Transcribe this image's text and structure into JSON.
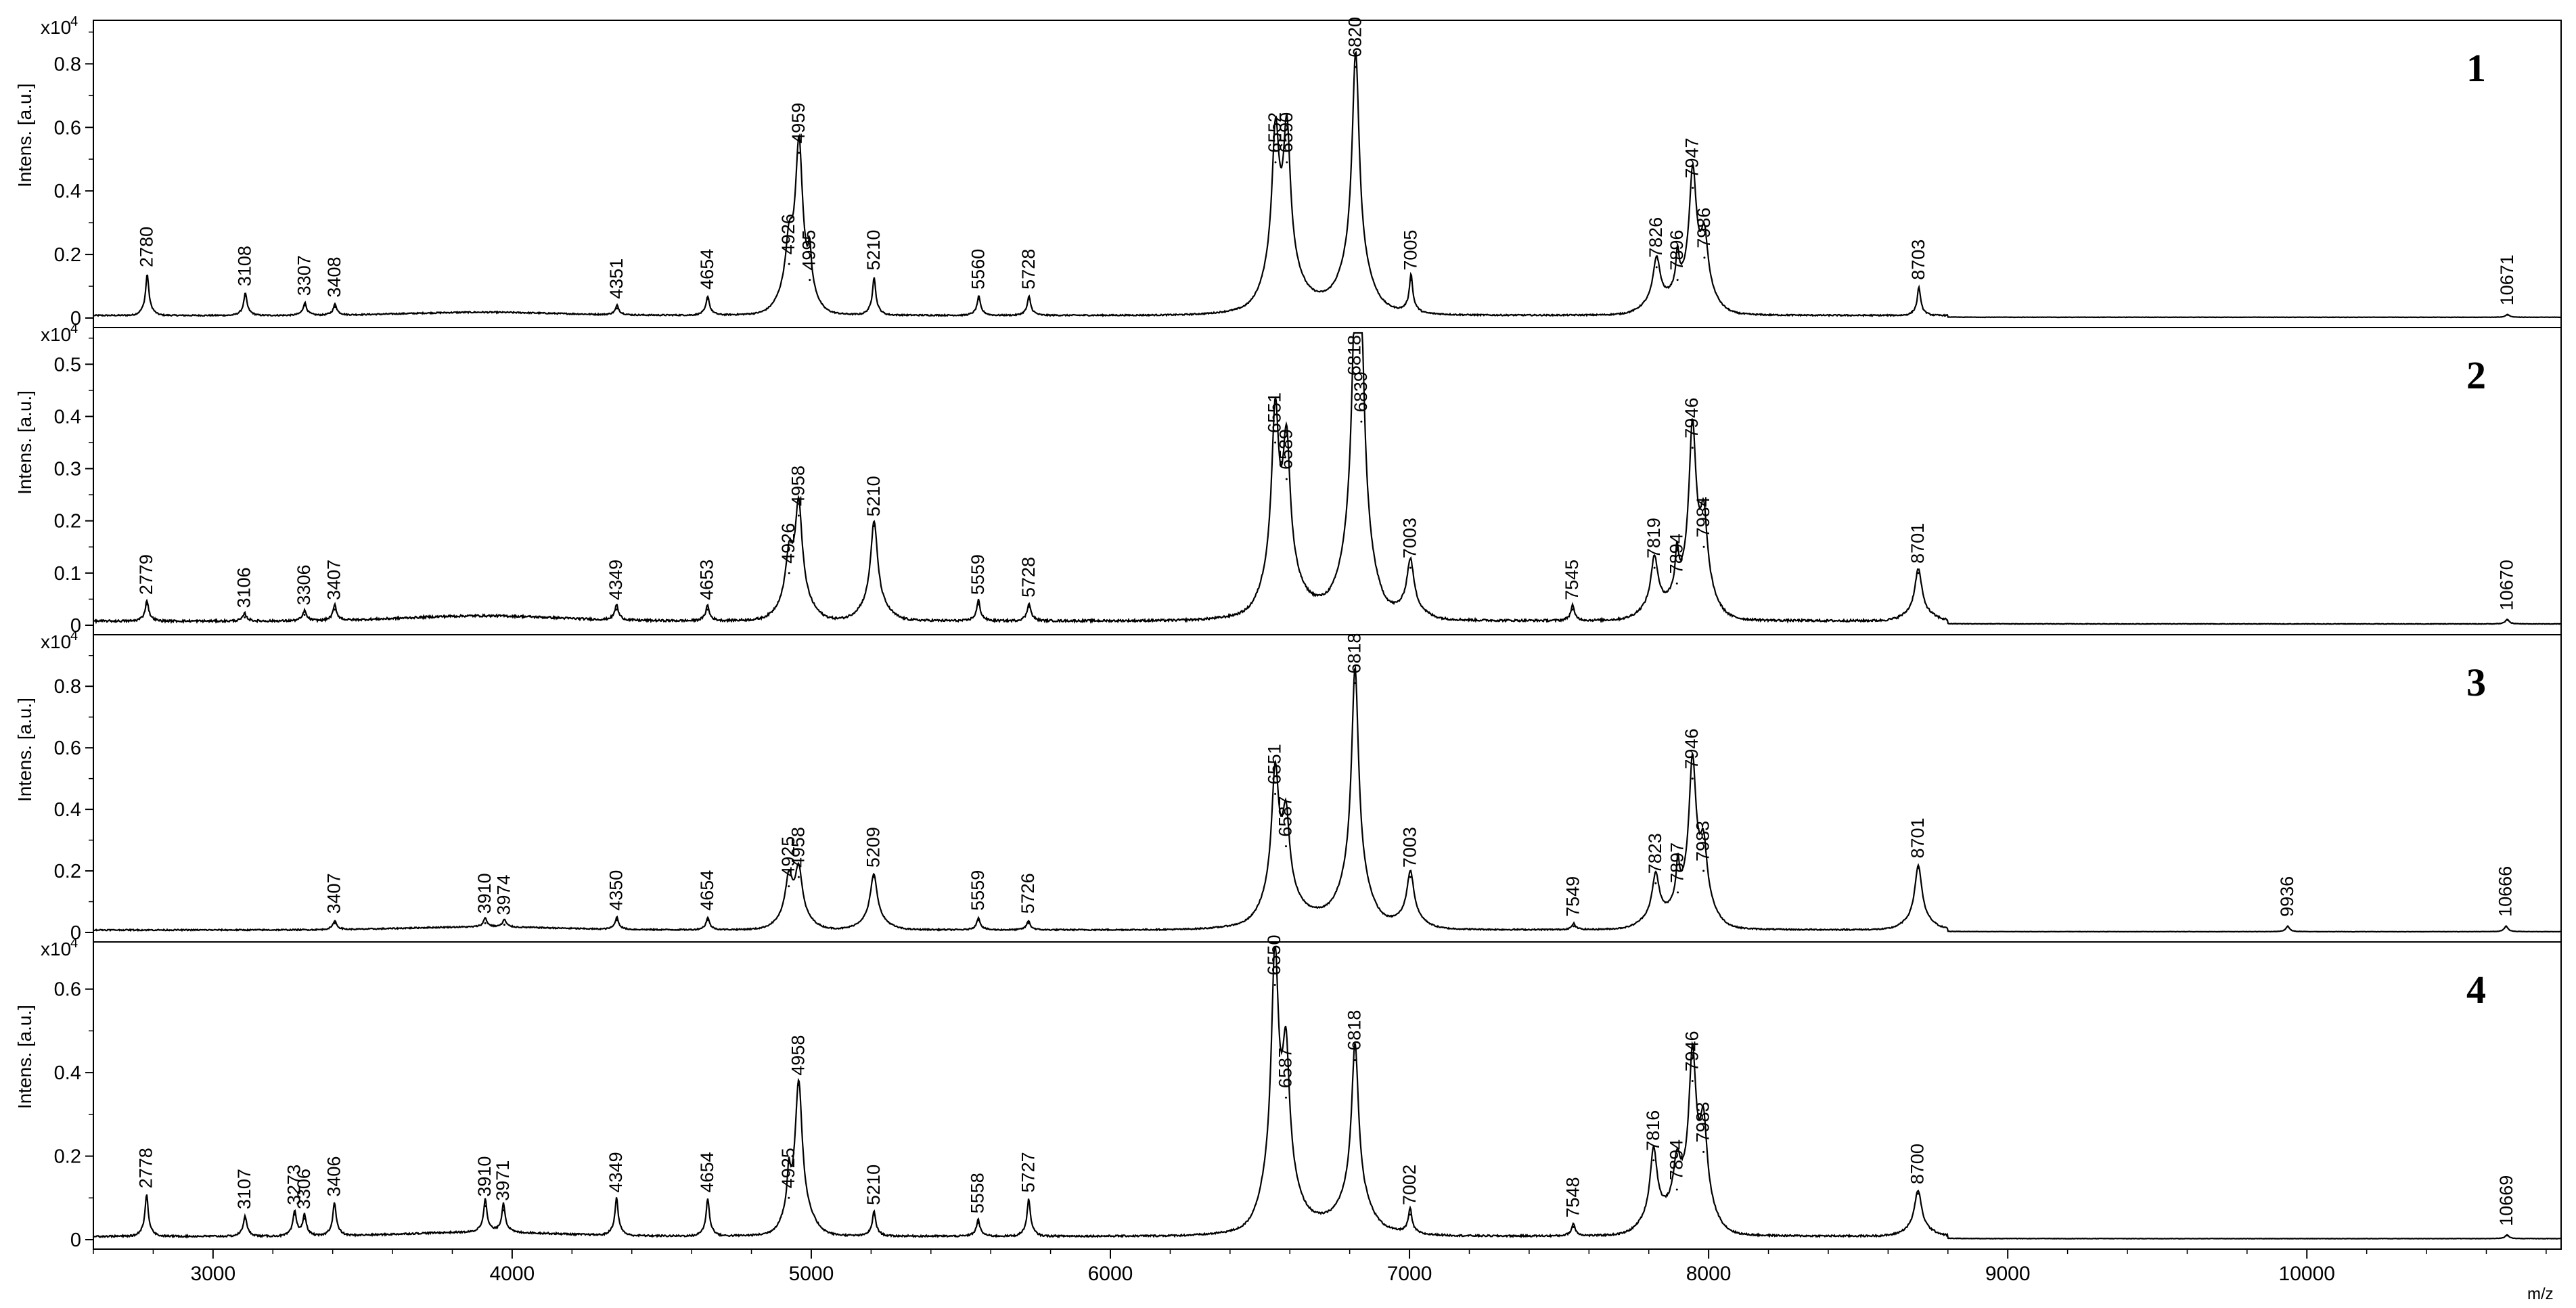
{
  "chart_data": {
    "type": "line",
    "shared_x_axis": {
      "label": "m/z",
      "range": [
        2600,
        10850
      ],
      "ticks": [
        3000,
        4000,
        5000,
        6000,
        7000,
        8000,
        9000,
        10000
      ]
    },
    "y_axis_label": "Intens. [a.u.]",
    "y_axis_multiplier": "x10",
    "y_axis_multiplier_exponent": "4",
    "panels": [
      {
        "panel_number": "1",
        "y_range": [
          0,
          0.92
        ],
        "y_ticks": [
          0.0,
          0.2,
          0.4,
          0.6,
          0.8
        ],
        "peaks": [
          {
            "label": "2780",
            "x": 2780,
            "y": 0.13
          },
          {
            "label": "3108",
            "x": 3108,
            "y": 0.07
          },
          {
            "label": "3307",
            "x": 3307,
            "y": 0.04
          },
          {
            "label": "3408",
            "x": 3408,
            "y": 0.035
          },
          {
            "label": "4351",
            "x": 4351,
            "y": 0.03
          },
          {
            "label": "4654",
            "x": 4654,
            "y": 0.06
          },
          {
            "label": "4926",
            "x": 4926,
            "y": 0.17
          },
          {
            "label": "4959",
            "x": 4959,
            "y": 0.52
          },
          {
            "label": "4995",
            "x": 4995,
            "y": 0.12
          },
          {
            "label": "5210",
            "x": 5210,
            "y": 0.12
          },
          {
            "label": "5560",
            "x": 5560,
            "y": 0.06
          },
          {
            "label": "5728",
            "x": 5728,
            "y": 0.06
          },
          {
            "label": "6552",
            "x": 6552,
            "y": 0.49
          },
          {
            "label": "6590",
            "x": 6590,
            "y": 0.49
          },
          {
            "label": "6820",
            "x": 6820,
            "y": 0.79
          },
          {
            "label": "7005",
            "x": 7005,
            "y": 0.12
          },
          {
            "label": "7826",
            "x": 7826,
            "y": 0.16
          },
          {
            "label": "7896",
            "x": 7896,
            "y": 0.12
          },
          {
            "label": "7947",
            "x": 7947,
            "y": 0.41
          },
          {
            "label": "7986",
            "x": 7986,
            "y": 0.19
          },
          {
            "label": "8703",
            "x": 8703,
            "y": 0.09
          },
          {
            "label": "10671",
            "x": 10671,
            "y": 0.01
          }
        ]
      },
      {
        "panel_number": "2",
        "y_range": [
          0,
          0.56
        ],
        "y_ticks": [
          0.0,
          0.1,
          0.2,
          0.3,
          0.4,
          0.5
        ],
        "peaks": [
          {
            "label": "2779",
            "x": 2779,
            "y": 0.04
          },
          {
            "label": "3106",
            "x": 3106,
            "y": 0.015
          },
          {
            "label": "3306",
            "x": 3306,
            "y": 0.02
          },
          {
            "label": "3407",
            "x": 3407,
            "y": 0.03
          },
          {
            "label": "4349",
            "x": 4349,
            "y": 0.03
          },
          {
            "label": "4653",
            "x": 4653,
            "y": 0.03
          },
          {
            "label": "4926",
            "x": 4926,
            "y": 0.1
          },
          {
            "label": "4958",
            "x": 4958,
            "y": 0.21
          },
          {
            "label": "5210",
            "x": 5210,
            "y": 0.19
          },
          {
            "label": "5559",
            "x": 5559,
            "y": 0.04
          },
          {
            "label": "5728",
            "x": 5728,
            "y": 0.035
          },
          {
            "label": "6551",
            "x": 6551,
            "y": 0.35
          },
          {
            "label": "6589",
            "x": 6589,
            "y": 0.28
          },
          {
            "label": "6818",
            "x": 6818,
            "y": 0.46
          },
          {
            "label": "6839",
            "x": 6839,
            "y": 0.39
          },
          {
            "label": "7003",
            "x": 7003,
            "y": 0.11
          },
          {
            "label": "7545",
            "x": 7545,
            "y": 0.03
          },
          {
            "label": "7819",
            "x": 7819,
            "y": 0.11
          },
          {
            "label": "7894",
            "x": 7894,
            "y": 0.08
          },
          {
            "label": "7946",
            "x": 7946,
            "y": 0.34
          },
          {
            "label": "7984",
            "x": 7984,
            "y": 0.15
          },
          {
            "label": "8701",
            "x": 8701,
            "y": 0.1
          },
          {
            "label": "10670",
            "x": 10670,
            "y": 0.01
          }
        ]
      },
      {
        "panel_number": "3",
        "y_range": [
          0,
          0.95
        ],
        "y_ticks": [
          0.0,
          0.2,
          0.4,
          0.6,
          0.8
        ],
        "peaks": [
          {
            "label": "3407",
            "x": 3407,
            "y": 0.03
          },
          {
            "label": "3910",
            "x": 3910,
            "y": 0.03
          },
          {
            "label": "3974",
            "x": 3974,
            "y": 0.025
          },
          {
            "label": "4350",
            "x": 4350,
            "y": 0.04
          },
          {
            "label": "4654",
            "x": 4654,
            "y": 0.04
          },
          {
            "label": "4925",
            "x": 4925,
            "y": 0.15
          },
          {
            "label": "4958",
            "x": 4958,
            "y": 0.18
          },
          {
            "label": "5209",
            "x": 5209,
            "y": 0.18
          },
          {
            "label": "5559",
            "x": 5559,
            "y": 0.04
          },
          {
            "label": "5726",
            "x": 5726,
            "y": 0.03
          },
          {
            "label": "6551",
            "x": 6551,
            "y": 0.45
          },
          {
            "label": "6587",
            "x": 6587,
            "y": 0.28
          },
          {
            "label": "6818",
            "x": 6818,
            "y": 0.81
          },
          {
            "label": "7003",
            "x": 7003,
            "y": 0.18
          },
          {
            "label": "7549",
            "x": 7549,
            "y": 0.02
          },
          {
            "label": "7823",
            "x": 7823,
            "y": 0.16
          },
          {
            "label": "7897",
            "x": 7897,
            "y": 0.13
          },
          {
            "label": "7946",
            "x": 7946,
            "y": 0.5
          },
          {
            "label": "7983",
            "x": 7983,
            "y": 0.2
          },
          {
            "label": "8701",
            "x": 8701,
            "y": 0.21
          },
          {
            "label": "9936",
            "x": 9936,
            "y": 0.02
          },
          {
            "label": "10666",
            "x": 10666,
            "y": 0.02
          }
        ]
      },
      {
        "panel_number": "4",
        "y_range": [
          0,
          0.7
        ],
        "y_ticks": [
          0.0,
          0.2,
          0.4,
          0.6
        ],
        "peaks": [
          {
            "label": "2778",
            "x": 2778,
            "y": 0.1
          },
          {
            "label": "3107",
            "x": 3107,
            "y": 0.05
          },
          {
            "label": "3273",
            "x": 3273,
            "y": 0.06
          },
          {
            "label": "3306",
            "x": 3306,
            "y": 0.05
          },
          {
            "label": "3406",
            "x": 3406,
            "y": 0.08
          },
          {
            "label": "3910",
            "x": 3910,
            "y": 0.08
          },
          {
            "label": "3971",
            "x": 3971,
            "y": 0.07
          },
          {
            "label": "4349",
            "x": 4349,
            "y": 0.09
          },
          {
            "label": "4654",
            "x": 4654,
            "y": 0.09
          },
          {
            "label": "4925",
            "x": 4925,
            "y": 0.1
          },
          {
            "label": "4958",
            "x": 4958,
            "y": 0.37
          },
          {
            "label": "5210",
            "x": 5210,
            "y": 0.06
          },
          {
            "label": "5558",
            "x": 5558,
            "y": 0.04
          },
          {
            "label": "5727",
            "x": 5727,
            "y": 0.09
          },
          {
            "label": "6550",
            "x": 6550,
            "y": 0.61
          },
          {
            "label": "6587",
            "x": 6587,
            "y": 0.34
          },
          {
            "label": "6818",
            "x": 6818,
            "y": 0.43
          },
          {
            "label": "7002",
            "x": 7002,
            "y": 0.06
          },
          {
            "label": "7548",
            "x": 7548,
            "y": 0.03
          },
          {
            "label": "7816",
            "x": 7816,
            "y": 0.19
          },
          {
            "label": "7894",
            "x": 7894,
            "y": 0.12
          },
          {
            "label": "7946",
            "x": 7946,
            "y": 0.38
          },
          {
            "label": "7983",
            "x": 7983,
            "y": 0.21
          },
          {
            "label": "8700",
            "x": 8700,
            "y": 0.11
          },
          {
            "label": "10669",
            "x": 10669,
            "y": 0.01
          }
        ]
      }
    ],
    "line_color": "#000000",
    "background_color": "#ffffff",
    "grid": false,
    "legend": "none"
  }
}
